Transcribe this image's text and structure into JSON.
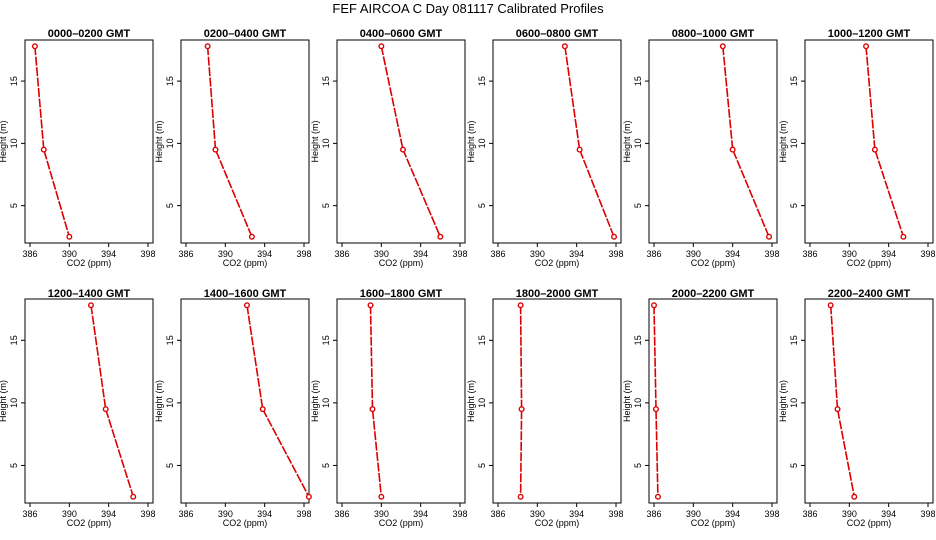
{
  "page": {
    "title": "FEF AIRCOA C  Day 081117  Calibrated Profiles"
  },
  "colors": {
    "series": "#dd0000",
    "axis": "#000000",
    "background": "#ffffff"
  },
  "chart_data": [
    {
      "type": "line",
      "title": "0000–0200 GMT",
      "xlabel": "CO2 (ppm)",
      "ylabel": "Height (m)",
      "xlim": [
        386,
        398
      ],
      "ylim": [
        2,
        18.3
      ],
      "xticks": [
        "386",
        "390",
        "394",
        "398"
      ],
      "yticks": [
        "5",
        "10",
        "15"
      ],
      "x": [
        386.5,
        387.4,
        390.0
      ],
      "y": [
        17.8,
        9.5,
        2.5
      ]
    },
    {
      "type": "line",
      "title": "0200–0400 GMT",
      "xlabel": "CO2 (ppm)",
      "ylabel": "Height (m)",
      "xlim": [
        386,
        398
      ],
      "ylim": [
        2,
        18.3
      ],
      "xticks": [
        "386",
        "390",
        "394",
        "398"
      ],
      "yticks": [
        "5",
        "10",
        "15"
      ],
      "x": [
        388.2,
        389.0,
        392.7
      ],
      "y": [
        17.8,
        9.5,
        2.5
      ]
    },
    {
      "type": "line",
      "title": "0400–0600 GMT",
      "xlabel": "CO2 (ppm)",
      "ylabel": "Height (m)",
      "xlim": [
        386,
        398
      ],
      "ylim": [
        2,
        18.3
      ],
      "xticks": [
        "386",
        "390",
        "394",
        "398"
      ],
      "yticks": [
        "5",
        "10",
        "15"
      ],
      "x": [
        390.0,
        392.2,
        396.0
      ],
      "y": [
        17.8,
        9.5,
        2.5
      ]
    },
    {
      "type": "line",
      "title": "0600–0800 GMT",
      "xlabel": "CO2 (ppm)",
      "ylabel": "Height (m)",
      "xlim": [
        386,
        398
      ],
      "ylim": [
        2,
        18.3
      ],
      "xticks": [
        "386",
        "390",
        "394",
        "398"
      ],
      "yticks": [
        "5",
        "10",
        "15"
      ],
      "x": [
        392.8,
        394.3,
        397.8
      ],
      "y": [
        17.8,
        9.5,
        2.5
      ]
    },
    {
      "type": "line",
      "title": "0800–1000 GMT",
      "xlabel": "CO2 (ppm)",
      "ylabel": "Height (m)",
      "xlim": [
        386,
        398
      ],
      "ylim": [
        2,
        18.3
      ],
      "xticks": [
        "386",
        "390",
        "394",
        "398"
      ],
      "yticks": [
        "5",
        "10",
        "15"
      ],
      "x": [
        393.0,
        394.0,
        397.7
      ],
      "y": [
        17.8,
        9.5,
        2.5
      ]
    },
    {
      "type": "line",
      "title": "1000–1200 GMT",
      "xlabel": "CO2 (ppm)",
      "ylabel": "Height (m)",
      "xlim": [
        386,
        398
      ],
      "ylim": [
        2,
        18.3
      ],
      "xticks": [
        "386",
        "390",
        "394",
        "398"
      ],
      "yticks": [
        "5",
        "10",
        "15"
      ],
      "x": [
        391.7,
        392.6,
        395.5
      ],
      "y": [
        17.8,
        9.5,
        2.5
      ]
    },
    {
      "type": "line",
      "title": "1200–1400 GMT",
      "xlabel": "CO2 (ppm)",
      "ylabel": "Height (m)",
      "xlim": [
        386,
        398
      ],
      "ylim": [
        2,
        18.3
      ],
      "xticks": [
        "386",
        "390",
        "394",
        "398"
      ],
      "yticks": [
        "5",
        "10",
        "15"
      ],
      "x": [
        392.2,
        393.7,
        396.5
      ],
      "y": [
        17.8,
        9.5,
        2.5
      ]
    },
    {
      "type": "line",
      "title": "1400–1600 GMT",
      "xlabel": "CO2 (ppm)",
      "ylabel": "Height (m)",
      "xlim": [
        386,
        398
      ],
      "ylim": [
        2,
        18.3
      ],
      "xticks": [
        "386",
        "390",
        "394",
        "398"
      ],
      "yticks": [
        "5",
        "10",
        "15"
      ],
      "x": [
        392.2,
        393.8,
        398.5
      ],
      "y": [
        17.8,
        9.5,
        2.5
      ]
    },
    {
      "type": "line",
      "title": "1600–1800 GMT",
      "xlabel": "CO2 (ppm)",
      "ylabel": "Height (m)",
      "xlim": [
        386,
        398
      ],
      "ylim": [
        2,
        18.3
      ],
      "xticks": [
        "386",
        "390",
        "394",
        "398"
      ],
      "yticks": [
        "5",
        "10",
        "15"
      ],
      "x": [
        388.9,
        389.1,
        390.0
      ],
      "y": [
        17.8,
        9.5,
        2.5
      ]
    },
    {
      "type": "line",
      "title": "1800–2000 GMT",
      "xlabel": "CO2 (ppm)",
      "ylabel": "Height (m)",
      "xlim": [
        386,
        398
      ],
      "ylim": [
        2,
        18.3
      ],
      "xticks": [
        "386",
        "390",
        "394",
        "398"
      ],
      "yticks": [
        "5",
        "10",
        "15"
      ],
      "x": [
        388.3,
        388.4,
        388.3
      ],
      "y": [
        17.8,
        9.5,
        2.5
      ]
    },
    {
      "type": "line",
      "title": "2000–2200 GMT",
      "xlabel": "CO2 (ppm)",
      "ylabel": "Height (m)",
      "xlim": [
        386,
        398
      ],
      "ylim": [
        2,
        18.3
      ],
      "xticks": [
        "386",
        "390",
        "394",
        "398"
      ],
      "yticks": [
        "5",
        "10",
        "15"
      ],
      "x": [
        386.0,
        386.2,
        386.4
      ],
      "y": [
        17.8,
        9.5,
        2.5
      ]
    },
    {
      "type": "line",
      "title": "2200–2400 GMT",
      "xlabel": "CO2 (ppm)",
      "ylabel": "Height (m)",
      "xlim": [
        386,
        398
      ],
      "ylim": [
        2,
        18.3
      ],
      "xticks": [
        "386",
        "390",
        "394",
        "398"
      ],
      "yticks": [
        "5",
        "10",
        "15"
      ],
      "x": [
        388.1,
        388.8,
        390.5
      ],
      "y": [
        17.8,
        9.5,
        2.5
      ]
    }
  ]
}
